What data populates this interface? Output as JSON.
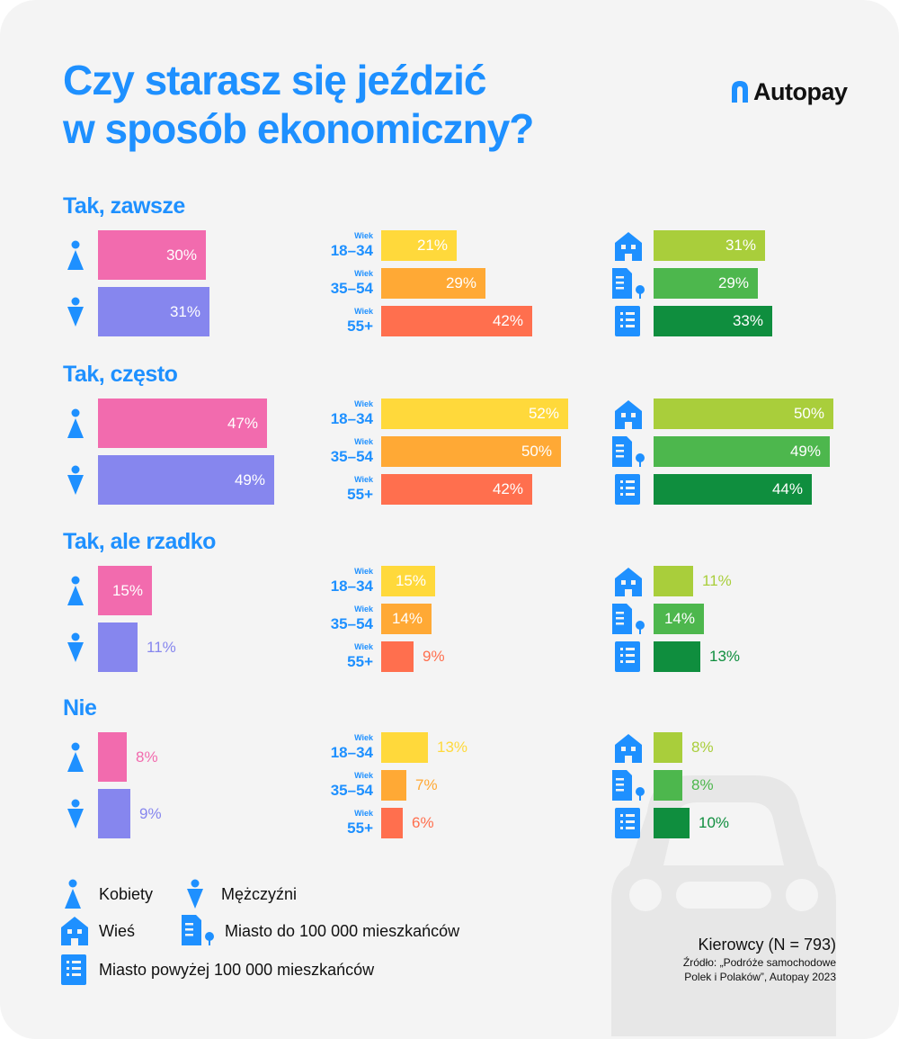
{
  "title": "Czy starasz się jeździć\nw sposób ekonomiczny?",
  "brand": {
    "name": "Autopay",
    "icon": "autopay-logo-icon"
  },
  "colors": {
    "accent": "#1E90FF",
    "women": "#F26BAE",
    "men": "#8686EE",
    "age_18_34": "#FFD93B",
    "age_35_54": "#FFA935",
    "age_55_plus": "#FF6F4E",
    "village": "#A9CE3B",
    "town": "#4DB74D",
    "city": "#0F8E3E",
    "background": "#F4F4F4"
  },
  "chart_data": {
    "type": "bar",
    "orientation": "horizontal",
    "unit": "%",
    "groups": {
      "gender": [
        {
          "name": "Kobiety",
          "icon": "woman-icon"
        },
        {
          "name": "Mężczyźni",
          "icon": "man-icon"
        }
      ],
      "age": [
        {
          "wiek": "Wiek",
          "range": "18–34"
        },
        {
          "wiek": "Wiek",
          "range": "35–54"
        },
        {
          "wiek": "Wiek",
          "range": "55+"
        }
      ],
      "residence": [
        {
          "name": "Wieś",
          "icon": "village-house-icon"
        },
        {
          "name": "Miasto do 100 000 mieszkańców",
          "icon": "town-building-icon"
        },
        {
          "name": "Miasto powyżej 100 000 mieszkańców",
          "icon": "city-building-icon"
        }
      ]
    },
    "answers": [
      {
        "label": "Tak, zawsze",
        "gender": [
          30,
          31
        ],
        "age": [
          21,
          29,
          42
        ],
        "residence": [
          31,
          29,
          33
        ]
      },
      {
        "label": "Tak, często",
        "gender": [
          47,
          49
        ],
        "age": [
          52,
          50,
          42
        ],
        "residence": [
          50,
          49,
          44
        ]
      },
      {
        "label": "Tak, ale rzadko",
        "gender": [
          15,
          11
        ],
        "age": [
          15,
          14,
          9
        ],
        "residence": [
          11,
          14,
          13
        ]
      },
      {
        "label": "Nie",
        "gender": [
          8,
          9
        ],
        "age": [
          13,
          7,
          6
        ],
        "residence": [
          8,
          8,
          10
        ]
      }
    ]
  },
  "legend": [
    {
      "label": "Kobiety",
      "icon": "woman-icon"
    },
    {
      "label": "Mężczyźni",
      "icon": "man-icon"
    },
    {
      "label": "Wieś",
      "icon": "village-house-icon"
    },
    {
      "label": "Miasto do 100 000 mieszkańców",
      "icon": "town-building-icon"
    },
    {
      "label": "Miasto powyżej 100 000 mieszkańców",
      "icon": "city-building-icon"
    }
  ],
  "footer": {
    "sample": "Kierowcy (N = 793)",
    "source": "Źródło: „Podróże samochodowe\nPolek i Polaków”, Autopay 2023"
  },
  "decor": {
    "background_icon": "car-icon"
  }
}
